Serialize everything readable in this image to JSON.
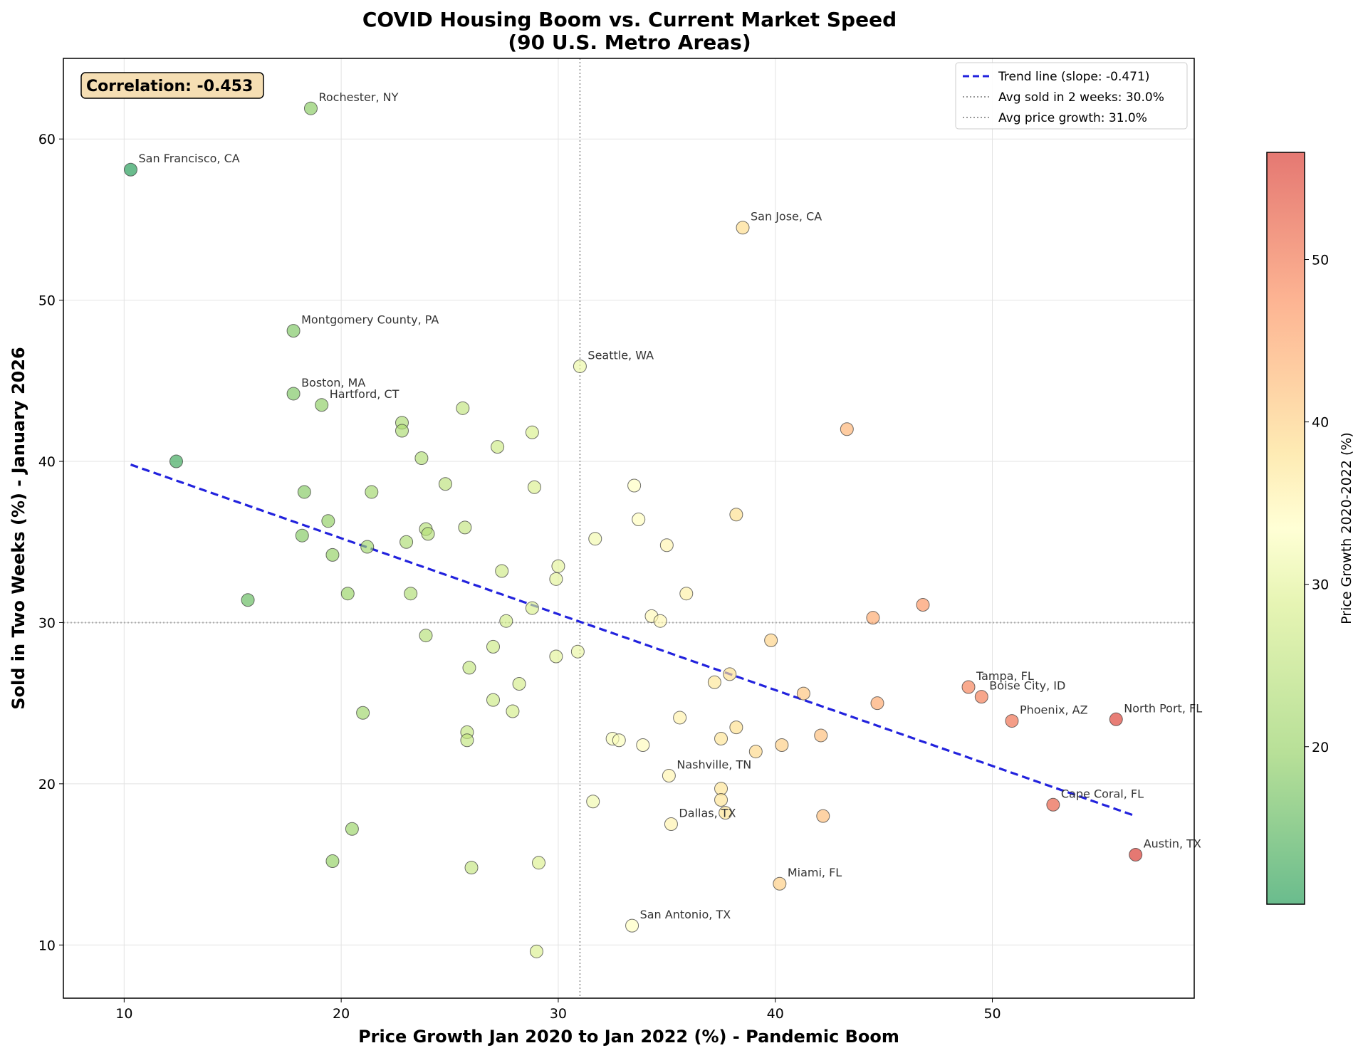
{
  "chart_data": {
    "type": "scatter",
    "title": "COVID Housing Boom vs. Current Market Speed",
    "subtitle": "(90 U.S. Metro Areas)",
    "xlabel": "Price Growth Jan 2020 to Jan 2022 (%) - Pandemic Boom",
    "ylabel": "Sold in Two Weeks (%) - January 2026",
    "xlim": [
      7.2,
      59.3
    ],
    "ylim": [
      6.7,
      65
    ],
    "x_ticks": [
      10,
      20,
      30,
      40,
      50
    ],
    "y_ticks": [
      10,
      20,
      30,
      40,
      50,
      60
    ],
    "grid": true,
    "legend_position": "top-right",
    "correlation_text": "Correlation: -0.453",
    "trend_line": {
      "label": "Trend line (slope: -0.471)",
      "color": "#2222dd",
      "x": [
        10.3,
        56.6
      ],
      "y": [
        39.8,
        18.0
      ]
    },
    "avg_lines": {
      "sold_label": "Avg sold in 2 weeks: 30.0%",
      "sold_value": 30.0,
      "growth_label": "Avg price growth: 31.0%",
      "growth_value": 31.0
    },
    "colorbar": {
      "label": "Price Growth 2020-2022 (%)",
      "min": 10.3,
      "max": 56.6,
      "ticks": [
        20,
        30,
        40,
        50
      ],
      "colormap": "RdYlGn_r"
    },
    "points": [
      {
        "x": 10.3,
        "y": 58.1,
        "label": "San Francisco, CA"
      },
      {
        "x": 18.6,
        "y": 61.9,
        "label": "Rochester, NY"
      },
      {
        "x": 38.5,
        "y": 54.5,
        "label": "San Jose, CA"
      },
      {
        "x": 17.8,
        "y": 48.1,
        "label": "Montgomery County, PA"
      },
      {
        "x": 31.0,
        "y": 45.9,
        "label": "Seattle, WA"
      },
      {
        "x": 17.8,
        "y": 44.2,
        "label": "Boston, MA"
      },
      {
        "x": 19.1,
        "y": 43.5,
        "label": "Hartford, CT"
      },
      {
        "x": 48.9,
        "y": 26.0,
        "label": "Tampa, FL"
      },
      {
        "x": 49.5,
        "y": 25.4,
        "label": "Boise City, ID"
      },
      {
        "x": 50.9,
        "y": 23.9,
        "label": "Phoenix, AZ"
      },
      {
        "x": 55.7,
        "y": 24.0,
        "label": "North Port, FL"
      },
      {
        "x": 35.1,
        "y": 20.5,
        "label": "Nashville, TN"
      },
      {
        "x": 52.8,
        "y": 18.7,
        "label": "Cape Coral, FL"
      },
      {
        "x": 35.2,
        "y": 17.5,
        "label": "Dallas, TX"
      },
      {
        "x": 56.6,
        "y": 15.6,
        "label": "Austin, TX"
      },
      {
        "x": 40.2,
        "y": 13.8,
        "label": "Miami, FL"
      },
      {
        "x": 33.4,
        "y": 11.2,
        "label": "San Antonio, TX"
      },
      {
        "x": 12.4,
        "y": 40.0
      },
      {
        "x": 15.7,
        "y": 31.4
      },
      {
        "x": 18.3,
        "y": 38.1
      },
      {
        "x": 18.2,
        "y": 35.4
      },
      {
        "x": 19.4,
        "y": 36.3
      },
      {
        "x": 19.6,
        "y": 34.2
      },
      {
        "x": 20.3,
        "y": 31.8
      },
      {
        "x": 21.2,
        "y": 34.7
      },
      {
        "x": 21.4,
        "y": 38.1
      },
      {
        "x": 21.0,
        "y": 24.4
      },
      {
        "x": 20.5,
        "y": 17.2
      },
      {
        "x": 19.6,
        "y": 15.2
      },
      {
        "x": 22.8,
        "y": 42.4
      },
      {
        "x": 22.8,
        "y": 41.9
      },
      {
        "x": 23.0,
        "y": 35.0
      },
      {
        "x": 23.2,
        "y": 31.8
      },
      {
        "x": 23.7,
        "y": 40.2
      },
      {
        "x": 23.9,
        "y": 35.8
      },
      {
        "x": 24.0,
        "y": 35.5
      },
      {
        "x": 23.9,
        "y": 29.2
      },
      {
        "x": 24.8,
        "y": 38.6
      },
      {
        "x": 25.6,
        "y": 43.3
      },
      {
        "x": 25.7,
        "y": 35.9
      },
      {
        "x": 25.9,
        "y": 27.2
      },
      {
        "x": 25.8,
        "y": 23.2
      },
      {
        "x": 25.8,
        "y": 22.7
      },
      {
        "x": 26.0,
        "y": 14.8
      },
      {
        "x": 27.0,
        "y": 28.5
      },
      {
        "x": 27.0,
        "y": 25.2
      },
      {
        "x": 27.2,
        "y": 40.9
      },
      {
        "x": 27.4,
        "y": 33.2
      },
      {
        "x": 27.6,
        "y": 30.1
      },
      {
        "x": 27.9,
        "y": 24.5
      },
      {
        "x": 28.2,
        "y": 26.2
      },
      {
        "x": 28.8,
        "y": 41.8
      },
      {
        "x": 28.9,
        "y": 38.4
      },
      {
        "x": 28.8,
        "y": 30.9
      },
      {
        "x": 29.1,
        "y": 15.1
      },
      {
        "x": 29.0,
        "y": 9.6
      },
      {
        "x": 29.9,
        "y": 32.7
      },
      {
        "x": 30.0,
        "y": 33.5
      },
      {
        "x": 29.9,
        "y": 27.9
      },
      {
        "x": 30.9,
        "y": 28.2
      },
      {
        "x": 31.7,
        "y": 35.2
      },
      {
        "x": 31.6,
        "y": 18.9
      },
      {
        "x": 32.5,
        "y": 22.8
      },
      {
        "x": 32.8,
        "y": 22.7
      },
      {
        "x": 33.5,
        "y": 38.5
      },
      {
        "x": 33.7,
        "y": 36.4
      },
      {
        "x": 33.9,
        "y": 22.4
      },
      {
        "x": 34.3,
        "y": 30.4
      },
      {
        "x": 34.7,
        "y": 30.1
      },
      {
        "x": 35.0,
        "y": 34.8
      },
      {
        "x": 35.6,
        "y": 24.1
      },
      {
        "x": 35.9,
        "y": 31.8
      },
      {
        "x": 37.2,
        "y": 26.3
      },
      {
        "x": 37.5,
        "y": 22.8
      },
      {
        "x": 37.5,
        "y": 19.7
      },
      {
        "x": 37.5,
        "y": 19.0
      },
      {
        "x": 37.7,
        "y": 18.2
      },
      {
        "x": 37.9,
        "y": 26.8
      },
      {
        "x": 38.2,
        "y": 36.7
      },
      {
        "x": 38.2,
        "y": 23.5
      },
      {
        "x": 39.1,
        "y": 22.0
      },
      {
        "x": 39.8,
        "y": 28.9
      },
      {
        "x": 40.3,
        "y": 22.4
      },
      {
        "x": 41.3,
        "y": 25.6
      },
      {
        "x": 42.1,
        "y": 23.0
      },
      {
        "x": 42.2,
        "y": 18.0
      },
      {
        "x": 43.3,
        "y": 42.0
      },
      {
        "x": 44.5,
        "y": 30.3
      },
      {
        "x": 44.7,
        "y": 25.0
      },
      {
        "x": 46.8,
        "y": 31.1
      }
    ]
  }
}
